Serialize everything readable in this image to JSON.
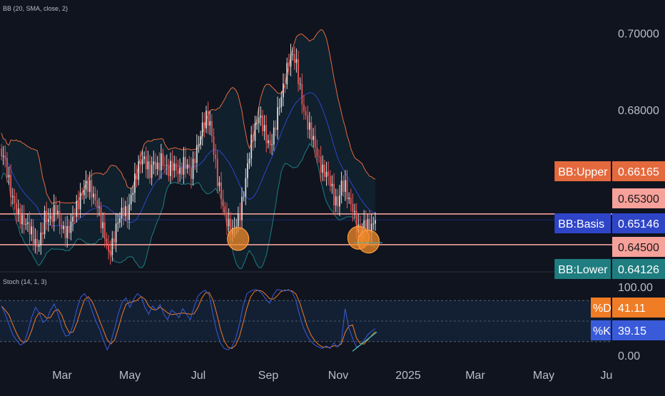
{
  "colors": {
    "background": "#0f141f",
    "candle_up": "#d9d9d9",
    "candle_down": "#ef5350",
    "bb_upper": "#e46a3e",
    "bb_basis": "#2f45c7",
    "bb_lower": "#1f7d80",
    "bb_fill": "#132a38",
    "support_lines": "#f6a19a",
    "marker_circle": "#f28a2a",
    "stoch_k": "#3a5bd9",
    "stoch_d": "#f07c25",
    "stoch_band": "#15253d",
    "trend_line": "#4db6ac",
    "axis_text": "#b8bdc7"
  },
  "chart_data": [
    {
      "type": "candlestick",
      "indicator_label": "BB (20, SMA, close, 2)",
      "x_labels": [
        "Mar",
        "May",
        "Jul",
        "Sep",
        "Nov",
        "2025",
        "Mar",
        "May",
        "Ju"
      ],
      "y_ticks": [
        "0.70000",
        "0.68000"
      ],
      "ylim": [
        0.6385,
        0.7045
      ],
      "horizontal_lines": [
        0.653,
        0.645
      ],
      "circle_markers_at": [
        "Aug",
        "Nov",
        "Nov"
      ],
      "price_tags": [
        {
          "label": "BB:Upper",
          "value": "0.66165",
          "color": "#e46a3e"
        },
        {
          "label": "",
          "value": "0.65300",
          "color": "#f6a19a"
        },
        {
          "label": "BB:Basis",
          "value": "0.65146",
          "color": "#2f45c7"
        },
        {
          "label": "",
          "value": "0.64500",
          "color": "#f6a19a"
        },
        {
          "label": "BB:Lower",
          "value": "0.64126",
          "color": "#1f7d80"
        }
      ],
      "close_series_approx": [
        0.668,
        0.664,
        0.659,
        0.656,
        0.653,
        0.651,
        0.65,
        0.649,
        0.647,
        0.645,
        0.647,
        0.652,
        0.651,
        0.652,
        0.655,
        0.651,
        0.649,
        0.648,
        0.65,
        0.653,
        0.656,
        0.659,
        0.661,
        0.66,
        0.657,
        0.655,
        0.651,
        0.648,
        0.643,
        0.645,
        0.649,
        0.652,
        0.654,
        0.653,
        0.658,
        0.662,
        0.665,
        0.667,
        0.666,
        0.664,
        0.667,
        0.665,
        0.667,
        0.665,
        0.664,
        0.666,
        0.665,
        0.664,
        0.666,
        0.665,
        0.663,
        0.668,
        0.672,
        0.676,
        0.678,
        0.676,
        0.669,
        0.662,
        0.658,
        0.653,
        0.65,
        0.648,
        0.65,
        0.653,
        0.659,
        0.666,
        0.672,
        0.675,
        0.678,
        0.676,
        0.673,
        0.671,
        0.674,
        0.679,
        0.683,
        0.688,
        0.693,
        0.695,
        0.692,
        0.685,
        0.679,
        0.676,
        0.674,
        0.671,
        0.667,
        0.664,
        0.663,
        0.661,
        0.657,
        0.656,
        0.661,
        0.66,
        0.656,
        0.654,
        0.65,
        0.648,
        0.651,
        0.65,
        0.649,
        0.6515
      ]
    },
    {
      "type": "line",
      "indicator_label": "Stoch (14, 1, 3)",
      "ylim": [
        0,
        100
      ],
      "y_ticks": [
        "100.00",
        "0.00"
      ],
      "bands": [
        80,
        50,
        20
      ],
      "series": [
        {
          "name": "%D",
          "value_label": "41.11",
          "color": "#f07c25"
        },
        {
          "name": "%K",
          "value_label": "39.15",
          "color": "#3a5bd9"
        }
      ],
      "k_values_approx": [
        72,
        60,
        45,
        30,
        22,
        15,
        18,
        35,
        55,
        70,
        62,
        48,
        52,
        66,
        75,
        60,
        40,
        28,
        30,
        45,
        68,
        85,
        90,
        82,
        65,
        50,
        38,
        22,
        8,
        20,
        40,
        62,
        78,
        84,
        70,
        82,
        90,
        86,
        70,
        60,
        72,
        66,
        74,
        60,
        52,
        66,
        62,
        55,
        68,
        60,
        52,
        70,
        86,
        92,
        95,
        88,
        60,
        35,
        18,
        10,
        8,
        12,
        24,
        45,
        72,
        90,
        94,
        96,
        95,
        90,
        82,
        76,
        88,
        96,
        95,
        94,
        96,
        92,
        80,
        58,
        40,
        28,
        20,
        15,
        12,
        10,
        14,
        10,
        18,
        12,
        20,
        68,
        40,
        25,
        12,
        15,
        22,
        30,
        35,
        39
      ]
    }
  ]
}
